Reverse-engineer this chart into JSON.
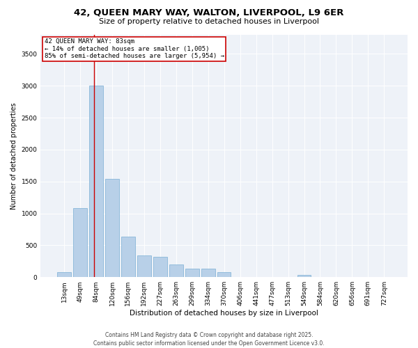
{
  "title_line1": "42, QUEEN MARY WAY, WALTON, LIVERPOOL, L9 6ER",
  "title_line2": "Size of property relative to detached houses in Liverpool",
  "xlabel": "Distribution of detached houses by size in Liverpool",
  "ylabel": "Number of detached properties",
  "categories": [
    "13sqm",
    "49sqm",
    "84sqm",
    "120sqm",
    "156sqm",
    "192sqm",
    "227sqm",
    "263sqm",
    "299sqm",
    "334sqm",
    "370sqm",
    "406sqm",
    "441sqm",
    "477sqm",
    "513sqm",
    "549sqm",
    "584sqm",
    "620sqm",
    "656sqm",
    "691sqm",
    "727sqm"
  ],
  "values": [
    75,
    1080,
    3000,
    1540,
    630,
    340,
    320,
    195,
    130,
    130,
    75,
    0,
    0,
    0,
    0,
    40,
    0,
    0,
    0,
    0,
    0
  ],
  "bar_color": "#b8d0e8",
  "bar_edge_color": "#7aafd4",
  "vline_x": 1.85,
  "vline_color": "#cc0000",
  "annotation_title": "42 QUEEN MARY WAY: 83sqm",
  "annotation_line2": "← 14% of detached houses are smaller (1,005)",
  "annotation_line3": "85% of semi-detached houses are larger (5,954) →",
  "annotation_box_color": "#cc0000",
  "ylim": [
    0,
    3800
  ],
  "yticks": [
    0,
    500,
    1000,
    1500,
    2000,
    2500,
    3000,
    3500
  ],
  "background_color": "#eef2f8",
  "footer_line1": "Contains HM Land Registry data © Crown copyright and database right 2025.",
  "footer_line2": "Contains public sector information licensed under the Open Government Licence v3.0.",
  "title_fontsize": 9.5,
  "subtitle_fontsize": 8.0,
  "xlabel_fontsize": 7.5,
  "ylabel_fontsize": 7.0,
  "tick_fontsize": 6.5,
  "annotation_fontsize": 6.5,
  "footer_fontsize": 5.5
}
